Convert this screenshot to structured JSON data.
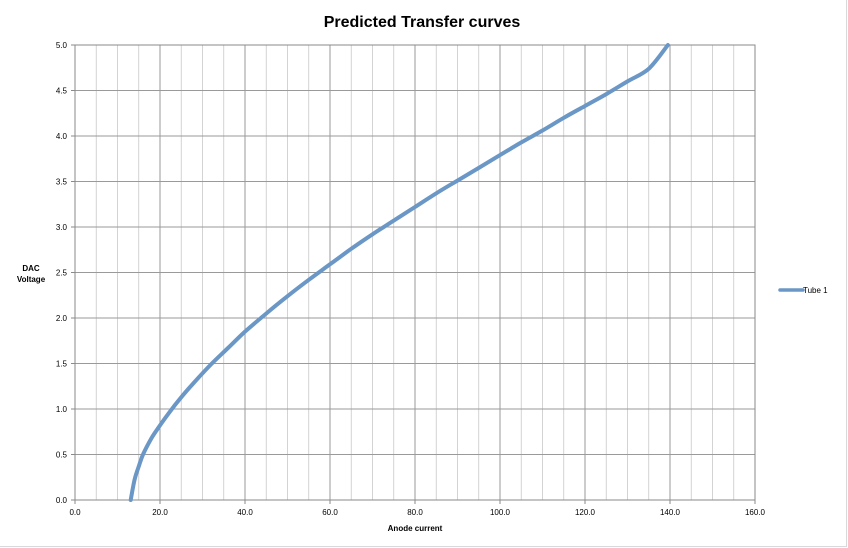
{
  "chart_data": {
    "type": "line",
    "title": "Predicted Transfer curves",
    "xlabel": "Anode current",
    "ylabel": [
      "DAC",
      "Voltage"
    ],
    "xlim": [
      0,
      160
    ],
    "ylim": [
      0,
      5
    ],
    "x_ticks": [
      "0.0",
      "20.0",
      "40.0",
      "60.0",
      "80.0",
      "100.0",
      "120.0",
      "140.0",
      "160.0"
    ],
    "y_ticks": [
      "0.0",
      "0.5",
      "1.0",
      "1.5",
      "2.0",
      "2.5",
      "3.0",
      "3.5",
      "4.0",
      "4.5",
      "5.0"
    ],
    "grid": true,
    "legend_position": "right",
    "series": [
      {
        "name": "Tube 1",
        "color": "#6a97c5",
        "x": [
          13.1,
          14,
          15,
          16,
          18,
          20,
          22,
          25,
          28,
          32,
          36,
          40,
          45,
          50,
          55,
          60,
          65,
          70,
          75,
          80,
          85,
          90,
          95,
          100,
          105,
          110,
          115,
          120,
          125,
          130,
          135,
          139.5
        ],
        "y": [
          0.0,
          0.22,
          0.37,
          0.5,
          0.68,
          0.82,
          0.95,
          1.13,
          1.29,
          1.49,
          1.67,
          1.85,
          2.05,
          2.24,
          2.42,
          2.59,
          2.76,
          2.92,
          3.07,
          3.22,
          3.37,
          3.51,
          3.65,
          3.79,
          3.93,
          4.06,
          4.2,
          4.33,
          4.46,
          4.6,
          4.74,
          5.0
        ]
      }
    ]
  }
}
